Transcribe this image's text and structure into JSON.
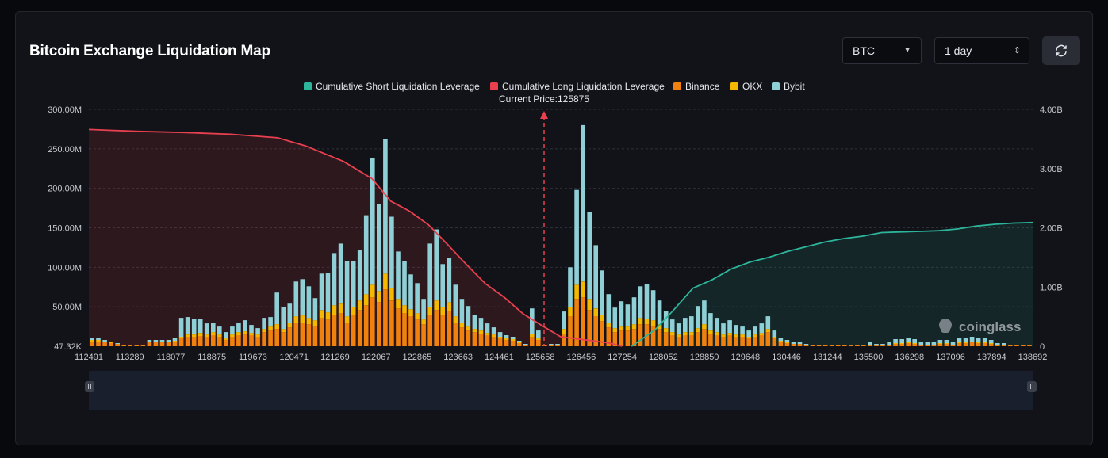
{
  "header": {
    "title": "Bitcoin Exchange Liquidation Map",
    "coin_select": "BTC",
    "period_select": "1 day"
  },
  "colors": {
    "background": "#121318",
    "short_line": "#2cb59a",
    "long_line": "#e8404f",
    "binance": "#f0810f",
    "okx": "#f5b800",
    "bybit": "#8fd0d6",
    "current_price_marker": "#e8404f"
  },
  "icons": {
    "refresh": "refresh-icon",
    "dropdown": "caret-down-icon",
    "stepper": "chevron-updown-icon",
    "watermark": "coinglass-logo-icon"
  },
  "watermark": "coinglass",
  "chart_data": {
    "type": "bar",
    "title": "",
    "current_price_label": "Current Price:125875",
    "current_price": 125875,
    "legend": [
      "Cumulative Short Liquidation Leverage",
      "Cumulative Long Liquidation Leverage",
      "Binance",
      "OKX",
      "Bybit"
    ],
    "legend_position": "top-center",
    "y_left_ticks": [
      "47.32K",
      "50.00M",
      "100.00M",
      "150.00M",
      "200.00M",
      "250.00M",
      "300.00M"
    ],
    "y_left_range": [
      0,
      300000000
    ],
    "y_right_ticks": [
      "0",
      "1.00B",
      "2.00B",
      "3.00B",
      "4.00B"
    ],
    "y_right_range": [
      0,
      4000000000
    ],
    "x_tick_labels": [
      "112491",
      "113289",
      "118077",
      "118875",
      "119673",
      "120471",
      "121269",
      "122067",
      "122865",
      "123663",
      "124461",
      "125658",
      "126456",
      "127254",
      "128052",
      "128850",
      "129648",
      "130446",
      "131244",
      "135500",
      "136298",
      "137096",
      "137894",
      "138692"
    ],
    "grid": true,
    "stacked_series": [
      {
        "name": "Binance",
        "values": [
          6,
          6,
          5,
          4,
          3,
          2,
          2,
          1,
          2,
          5,
          5,
          5,
          5,
          6,
          10,
          12,
          12,
          13,
          12,
          14,
          12,
          8,
          12,
          14,
          15,
          14,
          12,
          18,
          20,
          22,
          18,
          24,
          30,
          30,
          28,
          26,
          36,
          34,
          40,
          42,
          30,
          40,
          46,
          52,
          62,
          56,
          72,
          58,
          48,
          42,
          38,
          34,
          28,
          40,
          46,
          40,
          44,
          30,
          24,
          20,
          18,
          16,
          14,
          12,
          10,
          8,
          7,
          4,
          2,
          12,
          8,
          1,
          2,
          2,
          16,
          38,
          60,
          62,
          46,
          38,
          32,
          24,
          18,
          20,
          20,
          22,
          28,
          28,
          26,
          22,
          18,
          14,
          12,
          14,
          14,
          18,
          22,
          16,
          14,
          12,
          14,
          12,
          12,
          10,
          12,
          14,
          18,
          10,
          6,
          4,
          3,
          3,
          2,
          1,
          1,
          1,
          1,
          1,
          1,
          1,
          1,
          1,
          2,
          1,
          1,
          2,
          3,
          3,
          4,
          3,
          2,
          2,
          2,
          3,
          3,
          2,
          4,
          4,
          5,
          4,
          4,
          3,
          2,
          2,
          1,
          1,
          1,
          1
        ]
      },
      {
        "name": "OKX",
        "values": [
          2,
          2,
          1,
          1,
          0,
          0,
          0,
          0,
          0,
          1,
          1,
          1,
          1,
          1,
          2,
          3,
          3,
          4,
          3,
          4,
          3,
          2,
          3,
          4,
          4,
          3,
          3,
          4,
          5,
          6,
          4,
          6,
          8,
          9,
          8,
          7,
          10,
          9,
          12,
          12,
          8,
          10,
          12,
          14,
          16,
          14,
          20,
          16,
          12,
          10,
          9,
          8,
          6,
          10,
          12,
          10,
          12,
          8,
          6,
          5,
          4,
          4,
          3,
          3,
          2,
          2,
          2,
          1,
          0,
          4,
          2,
          0,
          0,
          0,
          6,
          12,
          18,
          20,
          14,
          10,
          8,
          6,
          5,
          5,
          5,
          6,
          8,
          7,
          7,
          6,
          5,
          4,
          3,
          4,
          4,
          5,
          6,
          4,
          4,
          3,
          3,
          3,
          3,
          2,
          3,
          3,
          4,
          2,
          1,
          1,
          0,
          0,
          0,
          0,
          0,
          0,
          0,
          0,
          0,
          0,
          0,
          0,
          0,
          0,
          0,
          0,
          1,
          1,
          1,
          1,
          0,
          0,
          0,
          1,
          1,
          0,
          1,
          1,
          1,
          1,
          1,
          1,
          0,
          0,
          0,
          0,
          0,
          0
        ]
      },
      {
        "name": "Bybit",
        "values": [
          2,
          2,
          2,
          1,
          1,
          0,
          0,
          0,
          0,
          2,
          2,
          2,
          2,
          3,
          24,
          22,
          20,
          18,
          14,
          12,
          10,
          8,
          10,
          12,
          14,
          10,
          8,
          14,
          12,
          40,
          28,
          24,
          44,
          46,
          40,
          28,
          46,
          50,
          66,
          76,
          70,
          58,
          64,
          100,
          160,
          110,
          170,
          90,
          60,
          56,
          44,
          38,
          26,
          80,
          90,
          54,
          56,
          40,
          30,
          26,
          18,
          16,
          12,
          9,
          6,
          4,
          3,
          2,
          1,
          32,
          10,
          1,
          1,
          1,
          22,
          50,
          120,
          198,
          110,
          80,
          56,
          36,
          26,
          32,
          28,
          34,
          40,
          44,
          38,
          30,
          22,
          16,
          14,
          18,
          20,
          28,
          30,
          22,
          18,
          14,
          16,
          12,
          10,
          8,
          10,
          12,
          16,
          8,
          4,
          3,
          2,
          2,
          1,
          1,
          1,
          1,
          1,
          1,
          1,
          1,
          1,
          1,
          3,
          2,
          2,
          4,
          5,
          5,
          6,
          5,
          3,
          3,
          3,
          4,
          4,
          3,
          5,
          5,
          6,
          5,
          5,
          4,
          2,
          2,
          1,
          1,
          1,
          1
        ]
      }
    ],
    "cumulative_long_line": {
      "name": "Cumulative Long Liquidation Leverage",
      "axis": "right",
      "points": [
        [
          0,
          3.66
        ],
        [
          0.05,
          3.63
        ],
        [
          0.1,
          3.61
        ],
        [
          0.15,
          3.58
        ],
        [
          0.2,
          3.52
        ],
        [
          0.23,
          3.38
        ],
        [
          0.27,
          3.12
        ],
        [
          0.3,
          2.83
        ],
        [
          0.32,
          2.45
        ],
        [
          0.34,
          2.28
        ],
        [
          0.36,
          2.05
        ],
        [
          0.38,
          1.72
        ],
        [
          0.4,
          1.38
        ],
        [
          0.42,
          1.06
        ],
        [
          0.44,
          0.83
        ],
        [
          0.46,
          0.55
        ],
        [
          0.48,
          0.35
        ],
        [
          0.5,
          0.16
        ],
        [
          0.52,
          0.12
        ],
        [
          0.54,
          0.08
        ],
        [
          0.55,
          0.06
        ],
        [
          0.565,
          0.0
        ]
      ]
    },
    "cumulative_short_line": {
      "name": "Cumulative Short Liquidation Leverage",
      "axis": "right",
      "points": [
        [
          0.575,
          0.0
        ],
        [
          0.6,
          0.28
        ],
        [
          0.62,
          0.62
        ],
        [
          0.64,
          0.98
        ],
        [
          0.66,
          1.12
        ],
        [
          0.68,
          1.3
        ],
        [
          0.7,
          1.42
        ],
        [
          0.72,
          1.5
        ],
        [
          0.74,
          1.6
        ],
        [
          0.76,
          1.68
        ],
        [
          0.78,
          1.76
        ],
        [
          0.8,
          1.82
        ],
        [
          0.82,
          1.86
        ],
        [
          0.84,
          1.92
        ],
        [
          0.86,
          1.93
        ],
        [
          0.88,
          1.94
        ],
        [
          0.9,
          1.95
        ],
        [
          0.92,
          1.98
        ],
        [
          0.94,
          2.03
        ],
        [
          0.96,
          2.06
        ],
        [
          0.98,
          2.08
        ],
        [
          1.0,
          2.09
        ]
      ]
    }
  }
}
